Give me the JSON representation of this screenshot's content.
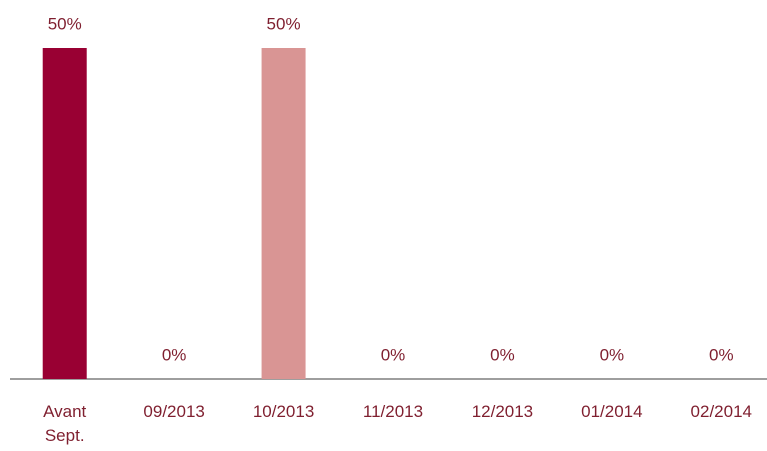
{
  "chart_data": {
    "type": "bar",
    "categories": [
      "Avant Sept.",
      "09/2013",
      "10/2013",
      "11/2013",
      "12/2013",
      "01/2014",
      "02/2014"
    ],
    "values": [
      50,
      0,
      50,
      0,
      0,
      0,
      0
    ],
    "value_labels": [
      "50%",
      "0%",
      "50%",
      "0%",
      "0%",
      "0%",
      "0%"
    ],
    "colors": [
      "#990033",
      null,
      "#d99594",
      null,
      null,
      null,
      null
    ]
  }
}
